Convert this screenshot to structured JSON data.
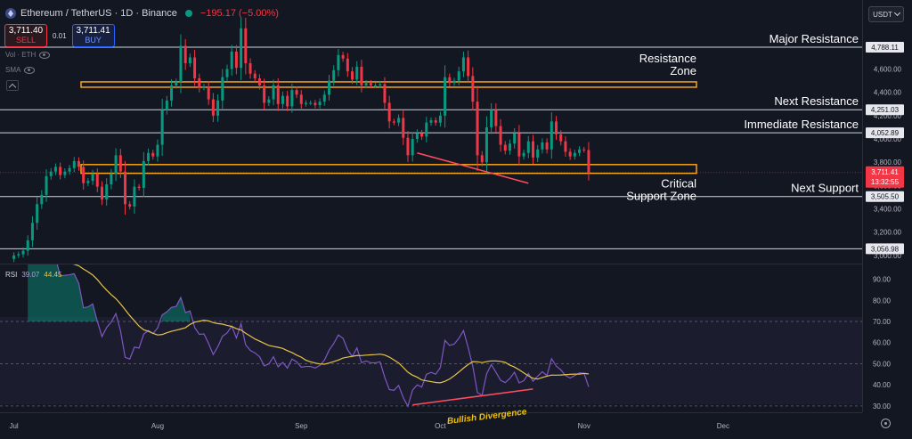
{
  "header": {
    "symbol": "Ethereum / TetherUS · 1D · Binance",
    "change": "−195.17 (−5.00%)"
  },
  "trade": {
    "sell_price": "3,711.40",
    "sell_label": "SELL",
    "spread": "0.01",
    "buy_price": "3,711.41",
    "buy_label": "BUY"
  },
  "indicators": {
    "vol_label": "Vol · ETH",
    "sma_label": "SMA"
  },
  "currency": "USDT",
  "colors": {
    "up": "#089981",
    "down": "#f23645",
    "zone_border": "#f7a21b",
    "rsi_line": "#7e57c2",
    "rsi_ma": "#e6c34a",
    "bg": "#131722"
  },
  "chart_data": [
    {
      "type": "candlestick",
      "y_range": [
        2930,
        5040
      ],
      "y_ticks": [
        3000,
        3200,
        3400,
        3600,
        3800,
        4000,
        4200,
        4400,
        4600
      ],
      "y_tick_labels": [
        "3,000.00",
        "3,200.00",
        "3,400.00",
        "3,600.00",
        "3,800.00",
        "4,000.00",
        "4,200.00",
        "4,400.00",
        "4,600.00"
      ],
      "x_axis": {
        "start": "2025-06-28",
        "end": "2025-12-31",
        "ticks": [
          {
            "label": "Jul",
            "date": "2025-07-01"
          },
          {
            "label": "Aug",
            "date": "2025-08-01"
          },
          {
            "label": "Sep",
            "date": "2025-09-01"
          },
          {
            "label": "Oct",
            "date": "2025-10-01"
          },
          {
            "label": "Nov",
            "date": "2025-11-01"
          },
          {
            "label": "Dec",
            "date": "2025-12-01"
          }
        ]
      },
      "candle_close": [
        3000,
        3010,
        3040,
        3130,
        3280,
        3440,
        3520,
        3680,
        3720,
        3760,
        3690,
        3720,
        3750,
        3810,
        3760,
        3620,
        3640,
        3700,
        3590,
        3480,
        3610,
        3700,
        3860,
        3720,
        3440,
        3420,
        3590,
        3580,
        3810,
        3880,
        3850,
        3950,
        4250,
        4330,
        4460,
        4490,
        4800,
        4650,
        4700,
        4520,
        4440,
        4450,
        4340,
        4200,
        4330,
        4530,
        4600,
        4750,
        4610,
        4950,
        4650,
        4560,
        4520,
        4460,
        4310,
        4340,
        4460,
        4300,
        4370,
        4280,
        4420,
        4380,
        4300,
        4310,
        4310,
        4290,
        4320,
        4380,
        4500,
        4590,
        4720,
        4690,
        4580,
        4510,
        4620,
        4460,
        4480,
        4460,
        4460,
        4470,
        4310,
        4150,
        4140,
        4180,
        4010,
        3860,
        4000,
        4050,
        4020,
        4140,
        4160,
        4140,
        4200,
        4530,
        4480,
        4500,
        4580,
        4700,
        4540,
        4320,
        3860,
        3800,
        4100,
        4250,
        4110,
        3950,
        3900,
        3960,
        4050,
        3850,
        3880,
        3980,
        3840,
        3910,
        3970,
        3910,
        4150,
        4040,
        3980,
        3890,
        3850,
        3880,
        3910,
        3905,
        3711
      ],
      "major_levels": [
        {
          "value": 4788.11,
          "label": "4,788.11",
          "text": "Major Resistance"
        },
        {
          "value": 4251.03,
          "label": "4,251.03",
          "text": "Next Resistance"
        },
        {
          "value": 4052.89,
          "label": "4,052.89",
          "text": "Immediate Resistance"
        },
        {
          "value": 3505.5,
          "label": "3,505.50",
          "text": "Next Support"
        },
        {
          "value": 3056.98,
          "label": "3,056.98",
          "text": ""
        }
      ],
      "zones": [
        {
          "text_line1": "Resistance",
          "text_line2": "Zone",
          "low": 4450,
          "high": 4490
        },
        {
          "text_line1": "Critical",
          "text_line2": "Support Zone",
          "low": 3705,
          "high": 3780
        }
      ],
      "current_price": {
        "value": 3711.41,
        "label": "3,711.41",
        "countdown": "13:32:55"
      }
    },
    {
      "type": "line",
      "title": "RSI",
      "legend_values": [
        "39.07",
        "44.45"
      ],
      "y_range": [
        27,
        97
      ],
      "y_ticks": [
        30,
        40,
        50,
        60,
        70,
        80,
        90
      ],
      "y_tick_labels": [
        "30.00",
        "40.00",
        "50.00",
        "60.00",
        "70.00",
        "80.00",
        "90.00"
      ],
      "overbought": 70,
      "oversold": 30,
      "middle": 50,
      "annotation": "Bullish Divergence"
    }
  ]
}
